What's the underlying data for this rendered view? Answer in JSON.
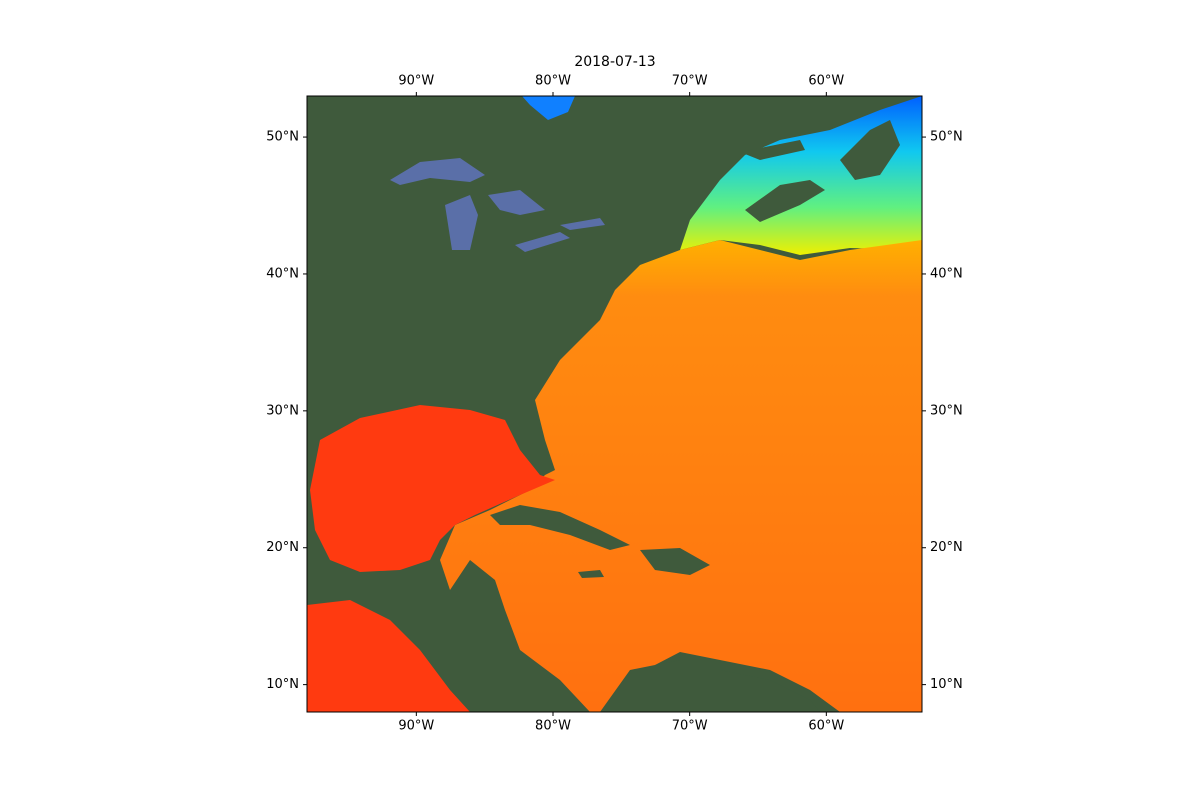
{
  "chart_data": {
    "type": "map",
    "title": "2018-07-13",
    "xlim": [
      -98,
      -53
    ],
    "ylim": [
      8,
      53
    ],
    "xticks": [
      {
        "value": -90,
        "label": "90°W"
      },
      {
        "value": -80,
        "label": "80°W"
      },
      {
        "value": -70,
        "label": "70°W"
      },
      {
        "value": -60,
        "label": "60°W"
      }
    ],
    "yticks": [
      {
        "value": 10,
        "label": "10°N"
      },
      {
        "value": 20,
        "label": "20°N"
      },
      {
        "value": 30,
        "label": "30°N"
      },
      {
        "value": 40,
        "label": "40°N"
      },
      {
        "value": 50,
        "label": "50°N"
      }
    ]
  }
}
